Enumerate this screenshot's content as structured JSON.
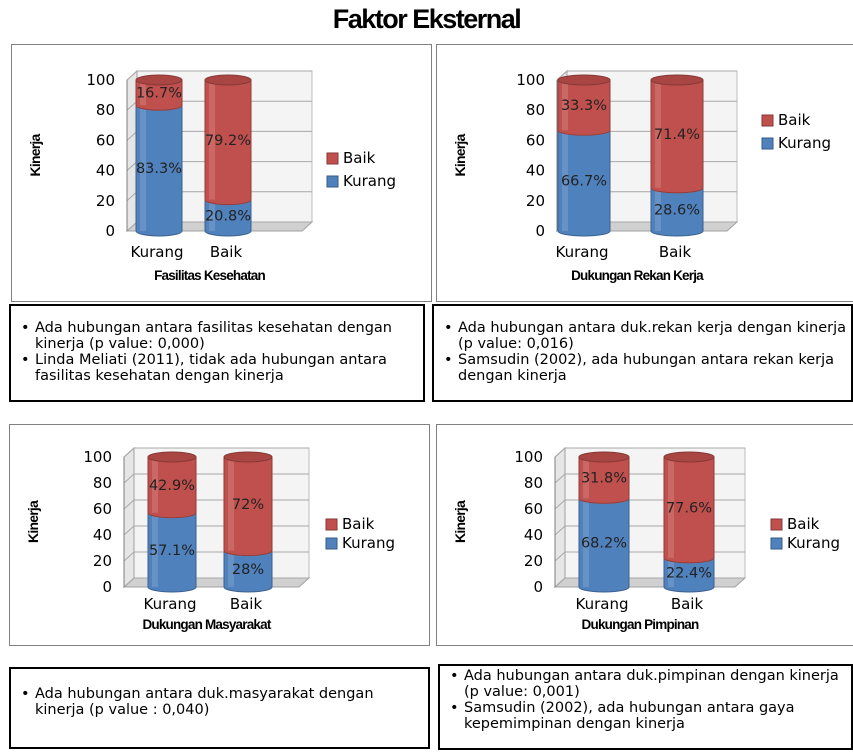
{
  "page": {
    "title": "Faktor Eksternal"
  },
  "colors": {
    "baik": "#c0504d",
    "kurang": "#4f81bd"
  },
  "chart_data": [
    {
      "type": "bar",
      "stacked": true,
      "style": "3d-cylinder",
      "title": "",
      "xlabel": "Fasilitas Kesehatan",
      "ylabel": "Kinerja",
      "ylim": [
        0,
        100
      ],
      "yticks": [
        "0",
        "20",
        "40",
        "60",
        "80",
        "100"
      ],
      "categories": [
        "Kurang",
        "Baik"
      ],
      "legend": "right",
      "series": [
        {
          "name": "Kurang",
          "values": [
            83.3,
            20.8
          ],
          "labels": [
            "83.3%",
            "20.8%"
          ]
        },
        {
          "name": "Baik",
          "values": [
            16.7,
            79.2
          ],
          "labels": [
            "16.7%",
            "79.2%"
          ]
        }
      ]
    },
    {
      "type": "bar",
      "stacked": true,
      "style": "3d-cylinder",
      "title": "",
      "xlabel": "Dukungan Rekan  Kerja",
      "ylabel": "Kinerja",
      "ylim": [
        0,
        100
      ],
      "yticks": [
        "0",
        "20",
        "40",
        "60",
        "80",
        "100"
      ],
      "categories": [
        "Kurang",
        "Baik"
      ],
      "legend": "right",
      "series": [
        {
          "name": "Kurang",
          "values": [
            66.7,
            28.6
          ],
          "labels": [
            "66.7%",
            "28.6%"
          ]
        },
        {
          "name": "Baik",
          "values": [
            33.3,
            71.4
          ],
          "labels": [
            "33.3%",
            "71.4%"
          ]
        }
      ]
    },
    {
      "type": "bar",
      "stacked": true,
      "style": "3d-cylinder",
      "title": "",
      "xlabel": "Dukungan Masyarakat",
      "ylabel": "Kinerja",
      "ylim": [
        0,
        100
      ],
      "yticks": [
        "0",
        "20",
        "40",
        "60",
        "80",
        "100"
      ],
      "categories": [
        "Kurang",
        "Baik"
      ],
      "legend": "right",
      "series": [
        {
          "name": "Kurang",
          "values": [
            57.1,
            28
          ],
          "labels": [
            "57.1%",
            "28%"
          ]
        },
        {
          "name": "Baik",
          "values": [
            42.9,
            72
          ],
          "labels": [
            "42.9%",
            "72%"
          ]
        }
      ]
    },
    {
      "type": "bar",
      "stacked": true,
      "style": "3d-cylinder",
      "title": "",
      "xlabel": "Dukungan Pimpinan",
      "ylabel": "Kinerja",
      "ylim": [
        0,
        100
      ],
      "yticks": [
        "0",
        "20",
        "40",
        "60",
        "80",
        "100"
      ],
      "categories": [
        "Kurang",
        "Baik"
      ],
      "legend": "right",
      "series": [
        {
          "name": "Kurang",
          "values": [
            68.2,
            22.4
          ],
          "labels": [
            "68.2%",
            "22.4%"
          ]
        },
        {
          "name": "Baik",
          "values": [
            31.8,
            77.6
          ],
          "labels": [
            "31.8%",
            "77.6%"
          ]
        }
      ]
    }
  ],
  "notes": [
    {
      "items": [
        "Ada hubungan antara fasilitas kesehatan dengan kinerja (p value: 0,000)",
        "Linda Meliati (2011), tidak ada hubungan antara fasilitas kesehatan dengan kinerja"
      ]
    },
    {
      "items": [
        "Ada hubungan antara duk.rekan kerja dengan kinerja (p value: 0,016)",
        "Samsudin (2002), ada hubungan antara rekan kerja dengan kinerja"
      ]
    },
    {
      "items": [
        "Ada hubungan antara duk.masyarakat dengan kinerja (p value : 0,040)"
      ]
    },
    {
      "items": [
        "Ada hubungan antara duk.pimpinan dengan kinerja (p value: 0,001)",
        "Samsudin (2002), ada hubungan antara gaya kepemimpinan dengan kinerja"
      ]
    }
  ]
}
